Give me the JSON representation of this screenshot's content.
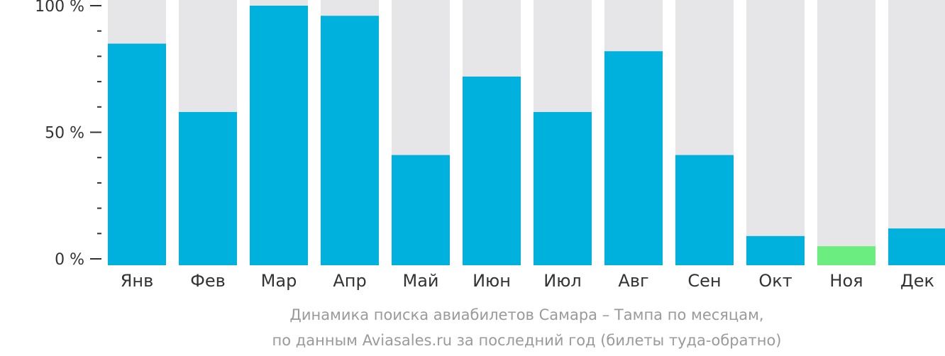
{
  "chart_data": {
    "type": "bar",
    "categories": [
      "Янв",
      "Фев",
      "Мар",
      "Апр",
      "Май",
      "Июн",
      "Июл",
      "Авг",
      "Сен",
      "Окт",
      "Ноя",
      "Дек"
    ],
    "values": [
      85,
      58,
      100,
      96,
      41,
      72,
      58,
      82,
      41,
      9,
      5,
      12
    ],
    "highlight_index": 10,
    "ylim": [
      0,
      100
    ],
    "yticks": [
      {
        "value": 0,
        "label": "0 %"
      },
      {
        "value": 50,
        "label": "50 %"
      },
      {
        "value": 100,
        "label": "100 %"
      }
    ],
    "minor_tick_step": 10,
    "colors": {
      "bar": "#00b0dd",
      "highlight": "#6ced80",
      "background_bar": "#e6e6e8",
      "axis": "#333333"
    }
  },
  "caption": {
    "line1": "Динамика поиска авиабилетов Самара – Тампа по месяцам,",
    "line2": "по данным Aviasales.ru за последний год (билеты туда-обратно)"
  }
}
